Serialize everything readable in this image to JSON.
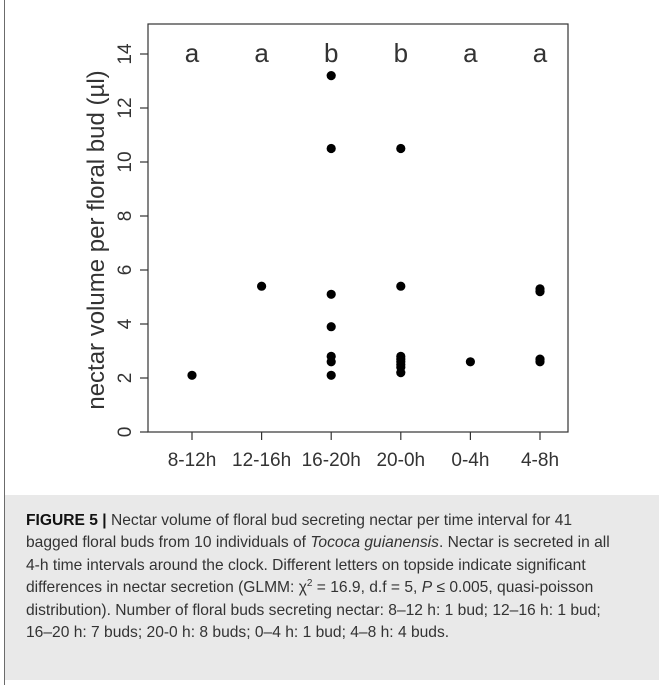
{
  "chart_data": {
    "type": "scatter",
    "ylabel": "nectar volume per floral bud (µl)",
    "xlabel": "",
    "categories": [
      "8-12h",
      "12-16h",
      "16-20h",
      "20-0h",
      "0-4h",
      "4-8h"
    ],
    "ylim": [
      0,
      14
    ],
    "yticks": [
      0,
      2,
      4,
      6,
      8,
      10,
      12,
      14
    ],
    "significance_letters": [
      "a",
      "a",
      "b",
      "b",
      "a",
      "a"
    ],
    "points": [
      {
        "x": "8-12h",
        "y": 2.1
      },
      {
        "x": "12-16h",
        "y": 5.4
      },
      {
        "x": "16-20h",
        "y": 13.2
      },
      {
        "x": "16-20h",
        "y": 10.5
      },
      {
        "x": "16-20h",
        "y": 5.1
      },
      {
        "x": "16-20h",
        "y": 3.9
      },
      {
        "x": "16-20h",
        "y": 2.8
      },
      {
        "x": "16-20h",
        "y": 2.6
      },
      {
        "x": "16-20h",
        "y": 2.1
      },
      {
        "x": "20-0h",
        "y": 10.5
      },
      {
        "x": "20-0h",
        "y": 5.4
      },
      {
        "x": "20-0h",
        "y": 2.8
      },
      {
        "x": "20-0h",
        "y": 2.7
      },
      {
        "x": "20-0h",
        "y": 2.6
      },
      {
        "x": "20-0h",
        "y": 2.5
      },
      {
        "x": "20-0h",
        "y": 2.4
      },
      {
        "x": "20-0h",
        "y": 2.2
      },
      {
        "x": "0-4h",
        "y": 2.6
      },
      {
        "x": "4-8h",
        "y": 5.3
      },
      {
        "x": "4-8h",
        "y": 5.2
      },
      {
        "x": "4-8h",
        "y": 2.7
      },
      {
        "x": "4-8h",
        "y": 2.6
      }
    ],
    "grid": false,
    "legend": "none"
  },
  "caption": {
    "label": "FIGURE 5 |",
    "part1": " Nectar volume of floral bud secreting nectar per time interval for 41 bagged floral buds from 10 individuals of ",
    "species": "Tococa guianensis",
    "part2": ". Nectar is secreted in all 4-h time intervals around the clock. Different letters on topside indicate significant differences in nectar secretion (GLMM: χ",
    "chi_sup": "2",
    "part3": " = 16.9, d.f = 5, ",
    "p_symbol": "P",
    "part4": " ≤ 0.005, quasi-poisson distribution). Number of floral buds secreting nectar: 8–12 h: 1 bud; 12–16 h: 1 bud; 16–20 h: 7 buds; 20-0 h: 8 buds; 0–4 h: 1 bud; 4–8 h: 4 buds."
  }
}
